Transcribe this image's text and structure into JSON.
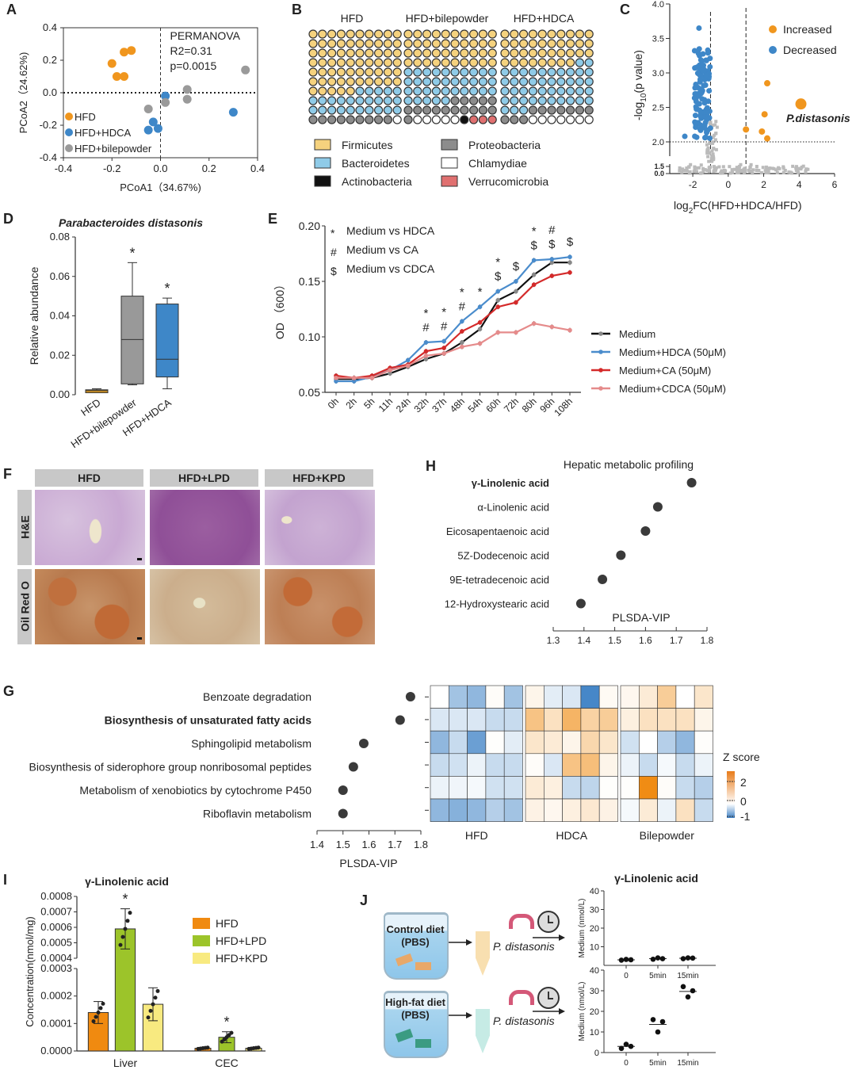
{
  "panels": {
    "A": "A",
    "B": "B",
    "C": "C",
    "D": "D",
    "E": "E",
    "F": "F",
    "G": "G",
    "H": "H",
    "I": "I",
    "J": "J"
  },
  "chart_data": [
    {
      "id": "A",
      "type": "scatter",
      "xlabel": "PCoA1（34.67%)",
      "ylabel": "PCoA2（24.62%)",
      "xlim": [
        -0.4,
        0.4
      ],
      "ylim": [
        -0.4,
        0.4
      ],
      "xticks": [
        "-0.4",
        "-0.2",
        "0.0",
        "0.2",
        "0.4"
      ],
      "yticks": [
        "-0.4",
        "-0.2",
        "0.0",
        "0.2",
        "0.4"
      ],
      "annotation": [
        "PERMANOVA",
        "R2=0.31",
        "p=0.0015"
      ],
      "series": [
        {
          "name": "HFD",
          "color": "#f0961e",
          "points": [
            [
              -0.2,
              0.18
            ],
            [
              -0.15,
              0.25
            ],
            [
              -0.12,
              0.26
            ],
            [
              -0.18,
              0.1
            ],
            [
              -0.15,
              0.1
            ]
          ]
        },
        {
          "name": "HFD+HDCA",
          "color": "#3e87c8",
          "points": [
            [
              0.02,
              -0.02
            ],
            [
              -0.03,
              -0.18
            ],
            [
              -0.05,
              -0.23
            ],
            [
              -0.01,
              -0.22
            ],
            [
              0.3,
              -0.12
            ]
          ]
        },
        {
          "name": "HFD+bilepowder",
          "color": "#9a9a9a",
          "points": [
            [
              -0.05,
              -0.1
            ],
            [
              0.02,
              -0.06
            ],
            [
              0.11,
              0.02
            ],
            [
              0.11,
              -0.04
            ],
            [
              0.35,
              0.14
            ]
          ]
        }
      ]
    },
    {
      "id": "B",
      "type": "waffle",
      "groups": [
        {
          "name": "HFD",
          "counts": {
            "Firmicutes": 64.5,
            "Bacteroidetes": 24.5,
            "Proteobacteria": 8.5,
            "Chlamydiae": 1.5,
            "Actinobacteria": 1,
            "Verrucomicrobia": 0
          }
        },
        {
          "name": "HFD+bilepowder",
          "counts": {
            "Firmicutes": 39.5,
            "Bacteroidetes": 35,
            "Proteobacteria": 15.5,
            "Chlamydiae": 5,
            "Actinobacteria": 1,
            "Verrucomicrobia": 4
          }
        },
        {
          "name": "HFD+HDCA",
          "counts": {
            "Firmicutes": 37.5,
            "Bacteroidetes": 44.5,
            "Proteobacteria": 9.5,
            "Chlamydiae": 6.5,
            "Actinobacteria": 2,
            "Verrucomicrobia": 0
          }
        }
      ],
      "legend": [
        {
          "name": "Firmicutes",
          "color": "#f5d27e"
        },
        {
          "name": "Proteobacteria",
          "color": "#8c8c8c"
        },
        {
          "name": "Bacteroidetes",
          "color": "#8fcbe8"
        },
        {
          "name": "Chlamydiae",
          "color": "#ffffff"
        },
        {
          "name": "Actinobacteria",
          "color": "#111111"
        },
        {
          "name": "Verrucomicrobia",
          "color": "#e07070"
        }
      ]
    },
    {
      "id": "C",
      "type": "scatter",
      "xlabel": "log",
      "xlabel_sub": "2",
      "xlabel_rest": "FC(HFD+HDCA/HFD)",
      "ylabel": "-log",
      "ylabel_sub": "10",
      "ylabel_rest": "(p value)",
      "xlim": [
        -3.3,
        6
      ],
      "ylim": [
        0,
        4.0
      ],
      "xticks": [
        "-2",
        "0",
        "2",
        "4",
        "6"
      ],
      "yticks": [
        "0.0",
        "1.5",
        "2.0",
        "2.5",
        "3.0",
        "3.5",
        "4.0"
      ],
      "legend": [
        {
          "name": "Increased",
          "color": "#f0961e"
        },
        {
          "name": "Decreased",
          "color": "#3e87c8"
        }
      ],
      "label": "P.distasonis",
      "highlight": [
        4.1,
        2.55
      ],
      "increased": [
        [
          2.2,
          2.85
        ],
        [
          2.05,
          2.4
        ],
        [
          1.0,
          2.18
        ],
        [
          1.9,
          2.15
        ],
        [
          2.2,
          2.05
        ]
      ],
      "thresholds": {
        "x": [
          -1,
          1
        ],
        "y": 2.0
      }
    },
    {
      "id": "D",
      "type": "box",
      "title": "Parabacteroides distasonis",
      "ylabel": "Relative abundance",
      "ylim": [
        0,
        0.08
      ],
      "yticks": [
        "0.00",
        "0.02",
        "0.04",
        "0.06",
        "0.08"
      ],
      "categories": [
        "HFD",
        "HFD+bilepowder",
        "HFD+HDCA"
      ],
      "colors": [
        "#e8a020",
        "#999999",
        "#3e87c8"
      ],
      "boxes": [
        {
          "min": 0.001,
          "q1": 0.001,
          "median": 0.002,
          "q3": 0.0025,
          "max": 0.003,
          "sig": ""
        },
        {
          "min": 0.005,
          "q1": 0.0055,
          "median": 0.028,
          "q3": 0.05,
          "max": 0.067,
          "sig": "*"
        },
        {
          "min": 0.003,
          "q1": 0.009,
          "median": 0.018,
          "q3": 0.046,
          "max": 0.049,
          "sig": "*"
        }
      ]
    },
    {
      "id": "E",
      "type": "line",
      "ylabel": "OD （600）",
      "ylim": [
        0.05,
        0.2
      ],
      "yticks": [
        "0.05",
        "0.10",
        "0.15",
        "0.20"
      ],
      "categories": [
        "0h",
        "2h",
        "5h",
        "11h",
        "24h",
        "32h",
        "37h",
        "48h",
        "54h",
        "60h",
        "72h",
        "80h",
        "96h",
        "108h"
      ],
      "key": [
        {
          "sym": "*",
          "text": "Medium vs HDCA"
        },
        {
          "sym": "#",
          "text": "Medium vs CA"
        },
        {
          "sym": "$",
          "text": "Medium vs CDCA"
        }
      ],
      "marks": [
        [],
        [],
        [],
        [],
        [],
        [
          "*",
          "#"
        ],
        [
          "*",
          "#"
        ],
        [
          "*",
          "#"
        ],
        [
          "*"
        ],
        [
          "*",
          "$"
        ],
        [
          "$"
        ],
        [
          "*",
          "$"
        ],
        [
          "#",
          "$"
        ],
        [
          "$"
        ]
      ],
      "series": [
        {
          "name": "Medium",
          "color": "#111111",
          "dot": "#888888",
          "values": [
            0.062,
            0.062,
            0.063,
            0.067,
            0.073,
            0.08,
            0.085,
            0.095,
            0.107,
            0.133,
            0.141,
            0.156,
            0.167,
            0.167
          ]
        },
        {
          "name": "Medium+HDCA (50μM)",
          "color": "#4a8ccc",
          "dot": "#4a8ccc",
          "values": [
            0.06,
            0.06,
            0.064,
            0.07,
            0.079,
            0.095,
            0.096,
            0.114,
            0.127,
            0.141,
            0.15,
            0.169,
            0.17,
            0.172
          ]
        },
        {
          "name": "Medium+CA (50μM)",
          "color": "#d42a2a",
          "dot": "#d42a2a",
          "values": [
            0.065,
            0.063,
            0.065,
            0.072,
            0.075,
            0.087,
            0.09,
            0.105,
            0.113,
            0.127,
            0.131,
            0.147,
            0.155,
            0.158
          ]
        },
        {
          "name": "Medium+CDCA (50μM)",
          "color": "#e58b8b",
          "dot": "#e58b8b",
          "values": [
            0.063,
            0.063,
            0.063,
            0.07,
            0.074,
            0.083,
            0.085,
            0.091,
            0.094,
            0.104,
            0.104,
            0.112,
            0.109,
            0.106
          ]
        }
      ]
    },
    {
      "id": "G",
      "type": "dot",
      "xlabel": "PLSDA-VIP",
      "xlim": [
        1.4,
        1.8
      ],
      "xticks": [
        "1.4",
        "1.5",
        "1.6",
        "1.7",
        "1.8"
      ],
      "categories": [
        "Benzoate degradation",
        "Biosynthesis of unsaturated fatty acids",
        "Sphingolipid metabolism",
        "Biosynthesis of siderophore group nonribosomal peptides",
        "Metabolism of xenobiotics by cytochrome P450",
        "Riboflavin metabolism"
      ],
      "highlight_index": 1,
      "highlight_color": "#d9622b",
      "values": [
        1.76,
        1.72,
        1.58,
        1.54,
        1.5,
        1.5
      ]
    },
    {
      "id": "G-heatmap",
      "type": "heatmap",
      "groups": [
        "HFD",
        "HDCA",
        "Bilepowder"
      ],
      "legend_title": "Z score",
      "legend_ticks": [
        "2",
        "0",
        "-1"
      ],
      "zlim": [
        -1,
        2.5
      ],
      "values": [
        [
          [
            0.0,
            -0.5,
            -0.6,
            0.05,
            -0.5
          ],
          [
            0.2,
            -0.15,
            -0.2,
            -1.0,
            0.1
          ],
          [
            0.15,
            0.4,
            1.0,
            0.0,
            0.5
          ]
        ],
        [
          [
            -0.2,
            -0.2,
            -0.2,
            -0.3,
            -0.3
          ],
          [
            1.2,
            0.6,
            1.5,
            0.9,
            1.0
          ],
          [
            0.3,
            0.6,
            0.6,
            0.6,
            0.2
          ]
        ],
        [
          [
            -0.6,
            -0.3,
            -0.8,
            0.02,
            -0.15
          ],
          [
            0.5,
            0.4,
            0.2,
            0.8,
            0.5
          ],
          [
            -0.25,
            0.0,
            -0.4,
            -0.6,
            0.03
          ]
        ],
        [
          [
            -0.3,
            -0.25,
            -0.1,
            -0.3,
            -0.3
          ],
          [
            0.05,
            -0.2,
            1.2,
            1.3,
            0.2
          ],
          [
            -0.1,
            -0.3,
            -0.05,
            -0.3,
            -0.1
          ]
        ],
        [
          [
            -0.1,
            -0.08,
            -0.05,
            -0.25,
            -0.25
          ],
          [
            0.4,
            0.3,
            -0.3,
            -0.35,
            0.02
          ],
          [
            0.02,
            2.3,
            0.05,
            -0.3,
            -0.4
          ]
        ],
        [
          [
            -0.6,
            -0.65,
            -0.6,
            -0.4,
            -0.5
          ],
          [
            0.25,
            0.15,
            0.3,
            0.45,
            0.25
          ],
          [
            -0.05,
            0.4,
            -0.1,
            0.6,
            -0.3
          ]
        ]
      ]
    },
    {
      "id": "H",
      "type": "dot",
      "title": "Hepatic metabolic profiling",
      "xlabel": "PLSDA-VIP",
      "xlim": [
        1.3,
        1.8
      ],
      "xticks": [
        "1.3",
        "1.4",
        "1.5",
        "1.6",
        "1.7",
        "1.8"
      ],
      "categories": [
        "γ-Linolenic acid",
        "α-Linolenic acid",
        "Eicosapentaenoic acid",
        "5Z-Dodecenoic acid",
        "9E-tetradecenoic acid",
        "12-Hydroxystearic acid"
      ],
      "values": [
        1.75,
        1.64,
        1.6,
        1.52,
        1.46,
        1.39
      ]
    },
    {
      "id": "I",
      "type": "bar",
      "title": "γ-Linolenic acid",
      "ylabel": "Concentration(nmol/mg)",
      "yticks_low": [
        "0.0000",
        "0.0001",
        "0.0002",
        "0.0003"
      ],
      "yticks_high": [
        "0.0004",
        "0.0005",
        "0.0006",
        "0.0007",
        "0.0008"
      ],
      "categories": [
        "Liver",
        "CEC"
      ],
      "series": [
        {
          "name": "HFD",
          "color": "#f08a10",
          "values": [
            0.00014,
            1e-05
          ],
          "err": [
            4e-05,
            3e-06
          ]
        },
        {
          "name": "HFD+LPD",
          "color": "#9cc42a",
          "values": [
            0.00059,
            5e-05
          ],
          "err": [
            0.00013,
            2e-05
          ]
        },
        {
          "name": "HFD+KPD",
          "color": "#f8ea80",
          "values": [
            0.00017,
            1e-05
          ],
          "err": [
            6e-05,
            3e-06
          ]
        }
      ],
      "sig": [
        [
          "",
          "*",
          ""
        ],
        [
          "",
          "*",
          ""
        ]
      ]
    },
    {
      "id": "J-top",
      "type": "scatter",
      "title": "γ-Linolenic acid",
      "ylabel": "Medium (nmol/L)",
      "ylim": [
        0,
        40
      ],
      "yticks": [
        "10",
        "20",
        "30",
        "40"
      ],
      "categories": [
        "0",
        "5min",
        "15min"
      ],
      "points": [
        [
          2.8,
          3.2,
          3.0
        ],
        [
          3.3,
          4.0,
          3.6
        ],
        [
          3.6,
          4.0,
          3.9
        ]
      ]
    },
    {
      "id": "J-bottom",
      "type": "scatter",
      "ylabel": "Medium (nmol/L)",
      "ylim": [
        0,
        40
      ],
      "yticks": [
        "0",
        "10",
        "20",
        "30",
        "40"
      ],
      "categories": [
        "0",
        "5min",
        "15min"
      ],
      "points": [
        [
          2.0,
          4.0,
          3.0
        ],
        [
          16.0,
          10.0,
          15.0
        ],
        [
          32.0,
          27.0,
          30.0
        ]
      ]
    }
  ],
  "F": {
    "columns": [
      "HFD",
      "HFD+LPD",
      "HFD+KPD"
    ],
    "rows": [
      "H&E",
      "Oil Red O"
    ]
  },
  "J": {
    "top_beaker": [
      "Control diet",
      "(PBS)"
    ],
    "bottom_beaker": [
      "High-fat diet",
      "(PBS)"
    ],
    "organism": "P. distasonis"
  }
}
